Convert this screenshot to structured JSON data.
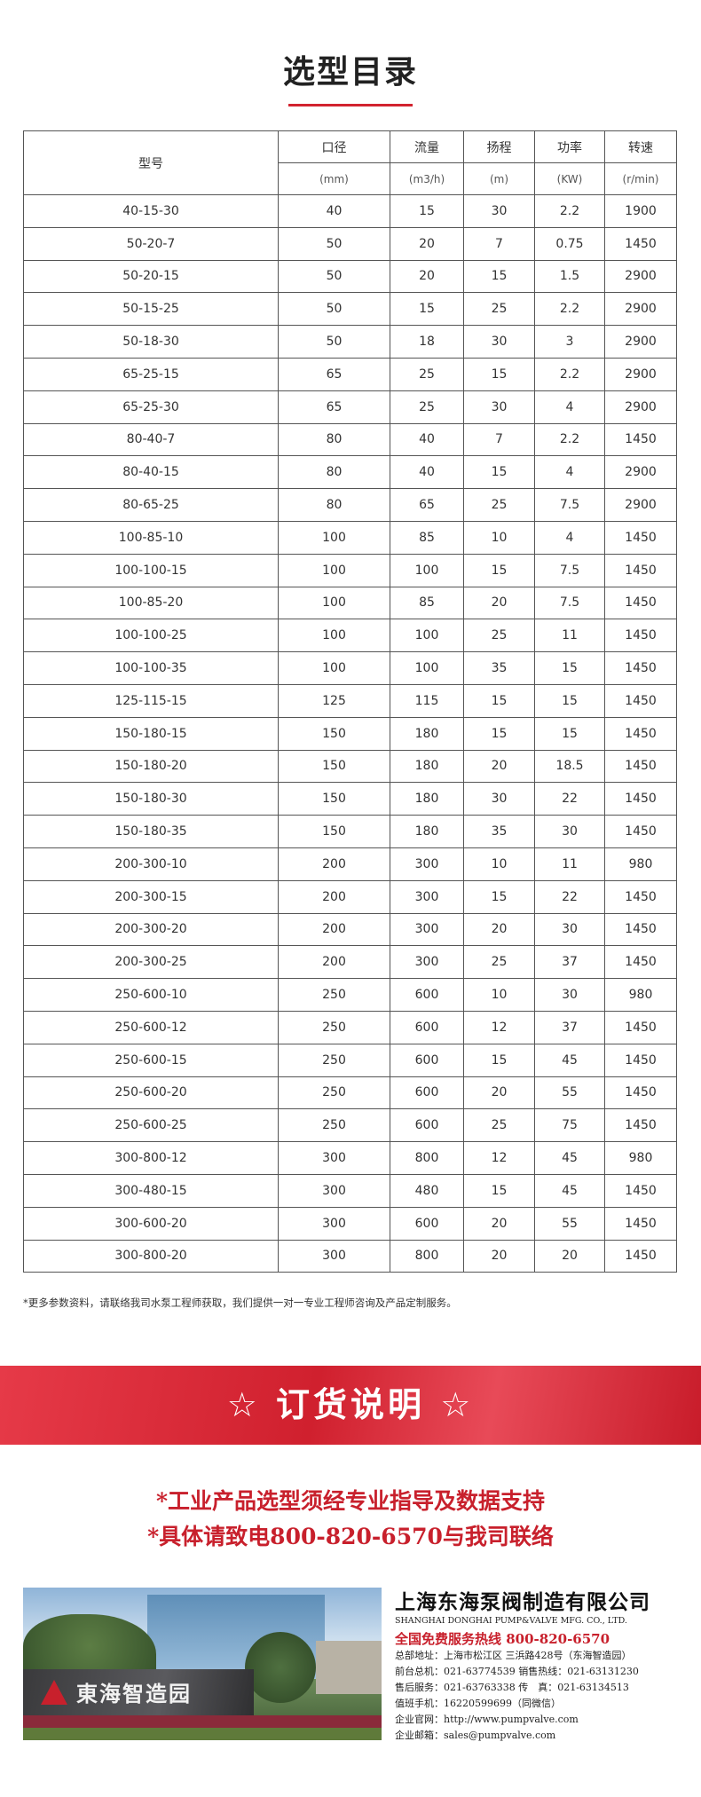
{
  "header": {
    "title": "选型目录"
  },
  "table": {
    "model_header": "型号",
    "columns": [
      {
        "name": "口径",
        "unit": "(mm)"
      },
      {
        "name": "流量",
        "unit": "(m3/h)"
      },
      {
        "name": "扬程",
        "unit": "(m)"
      },
      {
        "name": "功率",
        "unit": "(KW)"
      },
      {
        "name": "转速",
        "unit": "(r/min)"
      }
    ],
    "rows": [
      [
        "40-15-30",
        "40",
        "15",
        "30",
        "2.2",
        "1900"
      ],
      [
        "50-20-7",
        "50",
        "20",
        "7",
        "0.75",
        "1450"
      ],
      [
        "50-20-15",
        "50",
        "20",
        "15",
        "1.5",
        "2900"
      ],
      [
        "50-15-25",
        "50",
        "15",
        "25",
        "2.2",
        "2900"
      ],
      [
        "50-18-30",
        "50",
        "18",
        "30",
        "3",
        "2900"
      ],
      [
        "65-25-15",
        "65",
        "25",
        "15",
        "2.2",
        "2900"
      ],
      [
        "65-25-30",
        "65",
        "25",
        "30",
        "4",
        "2900"
      ],
      [
        "80-40-7",
        "80",
        "40",
        "7",
        "2.2",
        "1450"
      ],
      [
        "80-40-15",
        "80",
        "40",
        "15",
        "4",
        "2900"
      ],
      [
        "80-65-25",
        "80",
        "65",
        "25",
        "7.5",
        "2900"
      ],
      [
        "100-85-10",
        "100",
        "85",
        "10",
        "4",
        "1450"
      ],
      [
        "100-100-15",
        "100",
        "100",
        "15",
        "7.5",
        "1450"
      ],
      [
        "100-85-20",
        "100",
        "85",
        "20",
        "7.5",
        "1450"
      ],
      [
        "100-100-25",
        "100",
        "100",
        "25",
        "11",
        "1450"
      ],
      [
        "100-100-35",
        "100",
        "100",
        "35",
        "15",
        "1450"
      ],
      [
        "125-115-15",
        "125",
        "115",
        "15",
        "15",
        "1450"
      ],
      [
        "150-180-15",
        "150",
        "180",
        "15",
        "15",
        "1450"
      ],
      [
        "150-180-20",
        "150",
        "180",
        "20",
        "18.5",
        "1450"
      ],
      [
        "150-180-30",
        "150",
        "180",
        "30",
        "22",
        "1450"
      ],
      [
        "150-180-35",
        "150",
        "180",
        "35",
        "30",
        "1450"
      ],
      [
        "200-300-10",
        "200",
        "300",
        "10",
        "11",
        "980"
      ],
      [
        "200-300-15",
        "200",
        "300",
        "15",
        "22",
        "1450"
      ],
      [
        "200-300-20",
        "200",
        "300",
        "20",
        "30",
        "1450"
      ],
      [
        "200-300-25",
        "200",
        "300",
        "25",
        "37",
        "1450"
      ],
      [
        "250-600-10",
        "250",
        "600",
        "10",
        "30",
        "980"
      ],
      [
        "250-600-12",
        "250",
        "600",
        "12",
        "37",
        "1450"
      ],
      [
        "250-600-15",
        "250",
        "600",
        "15",
        "45",
        "1450"
      ],
      [
        "250-600-20",
        "250",
        "600",
        "20",
        "55",
        "1450"
      ],
      [
        "250-600-25",
        "250",
        "600",
        "25",
        "75",
        "1450"
      ],
      [
        "300-800-12",
        "300",
        "800",
        "12",
        "45",
        "980"
      ],
      [
        "300-480-15",
        "300",
        "480",
        "15",
        "45",
        "1450"
      ],
      [
        "300-600-20",
        "300",
        "600",
        "20",
        "55",
        "1450"
      ],
      [
        "300-800-20",
        "300",
        "800",
        "20",
        "20",
        "1450"
      ]
    ]
  },
  "footnote": "*更多参数资料，请联络我司水泵工程师获取，我们提供一对一专业工程师咨询及产品定制服务。",
  "banner": {
    "title": "☆ 订货说明 ☆"
  },
  "notes": [
    "*工业产品选型须经专业指导及数据支持",
    "*具体请致电800-820-6570与我司联络"
  ],
  "photo": {
    "sign": "東海智造园"
  },
  "company": {
    "name": "上海东海泵阀制造有限公司",
    "name_en": "SHANGHAI DONGHAI PUMP&VALVE MFG. CO., LTD.",
    "hotline": "全国免费服务热线  800-820-6570",
    "lines": [
      "总部地址：上海市松江区 三浜路428号（东海智造园）",
      "前台总机：021-63774539   销售热线：021-63131230",
      "售后服务：021-63763338   传　真：021-63134513",
      "值班手机：16220599699（同微信）",
      "企业官网：http://www.pumpvalve.com",
      "企业邮箱：sales@pumpvalve.com"
    ]
  }
}
